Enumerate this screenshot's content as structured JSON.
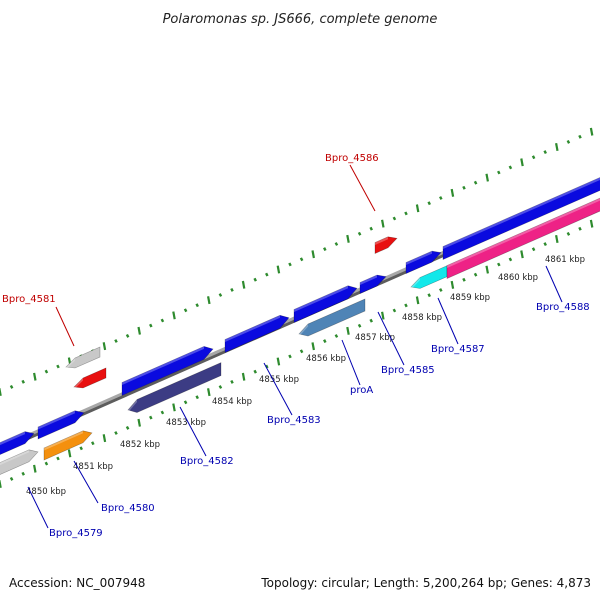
{
  "title": "Polaromonas sp. JS666, complete genome",
  "footer": {
    "accession": "Accession: NC_007948",
    "topology": "Topology: circular; Length: 5,200,264 bp; Genes: 4,873"
  },
  "colors": {
    "backbone": "#8a8a8a",
    "tick": "#2e8b2e",
    "blue": "#0a0adf",
    "navy": "#3c3c84",
    "steel": "#4f84b6",
    "orange": "#f4900e",
    "red": "#e81010",
    "gray": "#c8c8c8",
    "cyan": "#12e8ea",
    "pink": "#ee2286",
    "label_blue": "#0000b0",
    "label_red": "#c00000"
  },
  "kbp_labels": [
    "4850 kbp",
    "4851 kbp",
    "4852 kbp",
    "4853 kbp",
    "4854 kbp",
    "4855 kbp",
    "4856 kbp",
    "4857 kbp",
    "4858 kbp",
    "4859 kbp",
    "4860 kbp",
    "4861 kbp"
  ],
  "gene_labels": [
    {
      "text": "Bpro_4579",
      "color": "blue"
    },
    {
      "text": "Bpro_4580",
      "color": "blue"
    },
    {
      "text": "Bpro_4581",
      "color": "red"
    },
    {
      "text": "Bpro_4582",
      "color": "blue"
    },
    {
      "text": "Bpro_4583",
      "color": "blue"
    },
    {
      "text": "proA",
      "color": "blue"
    },
    {
      "text": "Bpro_4585",
      "color": "blue"
    },
    {
      "text": "Bpro_4586",
      "color": "red"
    },
    {
      "text": "Bpro_4587",
      "color": "blue"
    },
    {
      "text": "Bpro_4588",
      "color": "blue"
    }
  ]
}
